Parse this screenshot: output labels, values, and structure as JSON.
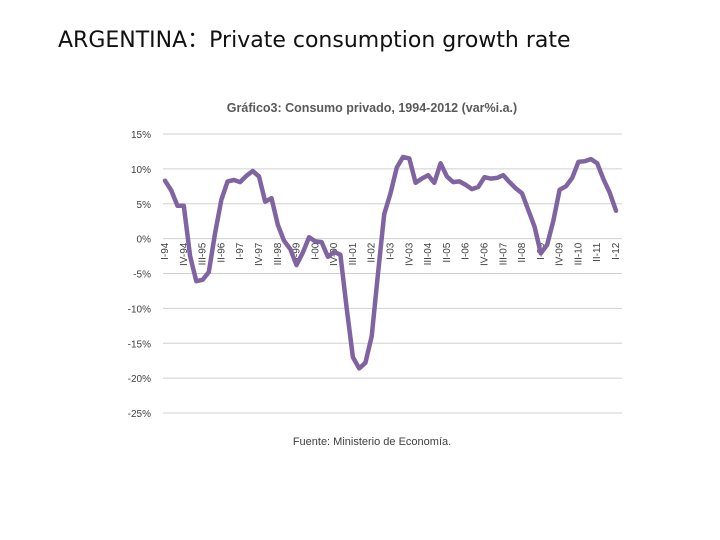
{
  "slide": {
    "title": "ARGENTINA：Private consumption growth rate"
  },
  "chart_data": {
    "type": "line",
    "title": "Gráfico3: Consumo privado, 1994-2012  (var%i.a.)",
    "source": "Fuente: Ministerio de Economía.",
    "ylim": [
      -25,
      15
    ],
    "y_ticks": [
      15,
      10,
      5,
      0,
      -5,
      -10,
      -15,
      -20,
      -25
    ],
    "y_tick_labels": [
      "15%",
      "10%",
      "5%",
      "0%",
      "-5%",
      "-10%",
      "-15%",
      "-20%",
      "-25%"
    ],
    "x_tick_labels": [
      "I-94",
      "IV-94",
      "III-95",
      "II-96",
      "I-97",
      "IV-97",
      "III-98",
      "II-99",
      "I-00",
      "IV-00",
      "III-01",
      "II-02",
      "I-03",
      "IV-03",
      "III-04",
      "II-05",
      "I-06",
      "IV-06",
      "III-07",
      "II-08",
      "I-09",
      "IV-09",
      "III-10",
      "II-11",
      "I-12"
    ],
    "grid": true,
    "line_color": "#8064a2",
    "series": [
      {
        "name": "Consumo privado (var% i.a.)",
        "x_start": "I-94",
        "x_end": "I-12",
        "values": [
          8.3,
          6.9,
          4.7,
          4.7,
          -2.5,
          -6.1,
          -5.9,
          -4.8,
          0.8,
          5.6,
          8.2,
          8.4,
          8.1,
          9.0,
          9.7,
          8.9,
          5.3,
          5.8,
          2.0,
          -0.3,
          -1.5,
          -3.8,
          -2.0,
          0.2,
          -0.4,
          -0.5,
          -2.6,
          -1.9,
          -2.3,
          -10.0,
          -17.0,
          -18.6,
          -17.8,
          -14.0,
          -5.0,
          3.5,
          6.5,
          10.2,
          11.7,
          11.5,
          8.0,
          8.6,
          9.1,
          8.0,
          10.8,
          8.9,
          8.1,
          8.2,
          7.7,
          7.1,
          7.4,
          8.8,
          8.6,
          8.7,
          9.1,
          8.1,
          7.2,
          6.5,
          4.1,
          1.7,
          -2.1,
          -0.9,
          2.6,
          7.0,
          7.5,
          8.7,
          11.0,
          11.1,
          11.4,
          10.8,
          8.5,
          6.6,
          4.0
        ]
      }
    ]
  }
}
